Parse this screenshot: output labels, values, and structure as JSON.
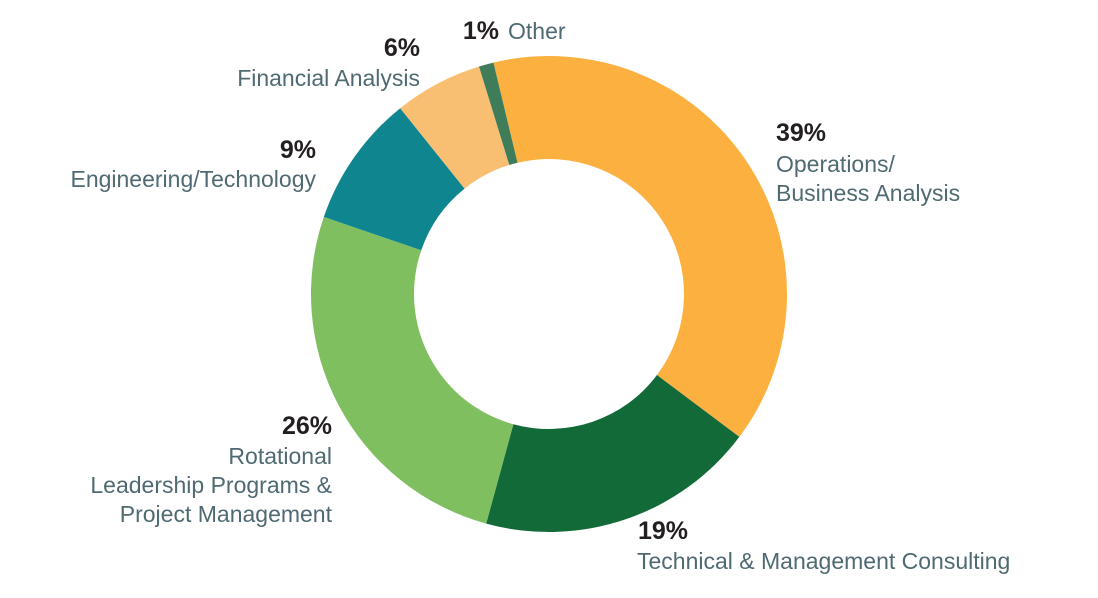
{
  "chart_data": {
    "type": "pie",
    "variant": "donut",
    "slices": [
      {
        "label": "Operations/\nBusiness Analysis",
        "percent": "39%",
        "value": 39,
        "color": "#FBB040"
      },
      {
        "label": "Technical & Management Consulting",
        "percent": "19%",
        "value": 19,
        "color": "#126A38"
      },
      {
        "label": "Rotational\nLeadership Programs &\nProject Management",
        "percent": "26%",
        "value": 26,
        "color": "#7FBF5F"
      },
      {
        "label": "Engineering/Technology",
        "percent": "9%",
        "value": 9,
        "color": "#0F8590"
      },
      {
        "label": "Financial Analysis",
        "percent": "6%",
        "value": 6,
        "color": "#F8BF73"
      },
      {
        "label": "Other",
        "percent": "1%",
        "value": 1,
        "color": "#3F7D5A"
      }
    ]
  }
}
